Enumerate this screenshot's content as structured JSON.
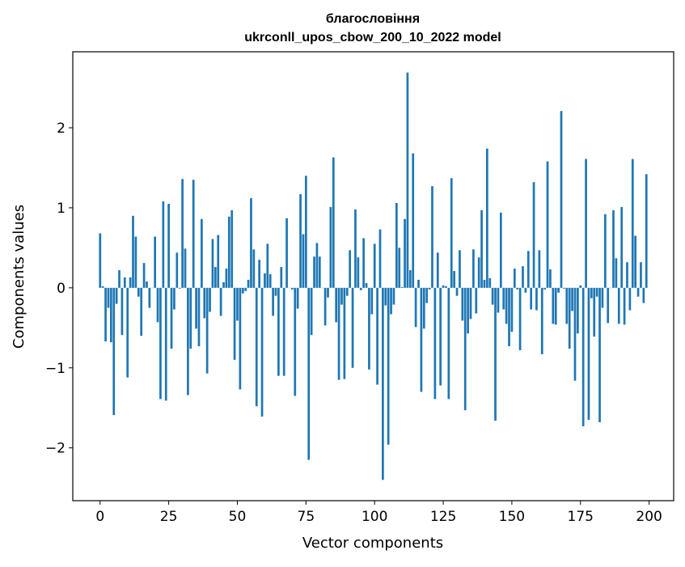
{
  "chart_data": {
    "type": "bar",
    "title_line1": "благословіння",
    "title_line2": "ukrconll_upos_cbow_200_10_2022 model",
    "xlabel": "Vector components",
    "ylabel": "Components values",
    "xlim": [
      -9.95,
      208.95
    ],
    "ylim": [
      -2.66,
      2.95
    ],
    "xticks": [
      0,
      25,
      50,
      75,
      100,
      125,
      150,
      175,
      200
    ],
    "xtick_labels": [
      "0",
      "25",
      "50",
      "75",
      "100",
      "125",
      "150",
      "175",
      "200"
    ],
    "yticks": [
      -2,
      -1,
      0,
      1,
      2
    ],
    "ytick_labels": [
      "−2",
      "−1",
      "0",
      "1",
      "2"
    ],
    "grid": false,
    "bar_color": "#1f77b4",
    "x": [
      0,
      1,
      2,
      3,
      4,
      5,
      6,
      7,
      8,
      9,
      10,
      11,
      12,
      13,
      14,
      15,
      16,
      17,
      18,
      19,
      20,
      21,
      22,
      23,
      24,
      25,
      26,
      27,
      28,
      29,
      30,
      31,
      32,
      33,
      34,
      35,
      36,
      37,
      38,
      39,
      40,
      41,
      42,
      43,
      44,
      45,
      46,
      47,
      48,
      49,
      50,
      51,
      52,
      53,
      54,
      55,
      56,
      57,
      58,
      59,
      60,
      61,
      62,
      63,
      64,
      65,
      66,
      67,
      68,
      69,
      70,
      71,
      72,
      73,
      74,
      75,
      76,
      77,
      78,
      79,
      80,
      81,
      82,
      83,
      84,
      85,
      86,
      87,
      88,
      89,
      90,
      91,
      92,
      93,
      94,
      95,
      96,
      97,
      98,
      99,
      100,
      101,
      102,
      103,
      104,
      105,
      106,
      107,
      108,
      109,
      110,
      111,
      112,
      113,
      114,
      115,
      116,
      117,
      118,
      119,
      120,
      121,
      122,
      123,
      124,
      125,
      126,
      127,
      128,
      129,
      130,
      131,
      132,
      133,
      134,
      135,
      136,
      137,
      138,
      139,
      140,
      141,
      142,
      143,
      144,
      145,
      146,
      147,
      148,
      149,
      150,
      151,
      152,
      153,
      154,
      155,
      156,
      157,
      158,
      159,
      160,
      161,
      162,
      163,
      164,
      165,
      166,
      167,
      168,
      169,
      170,
      171,
      172,
      173,
      174,
      175,
      176,
      177,
      178,
      179,
      180,
      181,
      182,
      183,
      184,
      185,
      186,
      187,
      188,
      189,
      190,
      191,
      192,
      193,
      194,
      195,
      196,
      197,
      198,
      199
    ],
    "values": [
      0.68,
      0.02,
      -0.67,
      -0.25,
      -0.68,
      -1.59,
      -0.2,
      0.22,
      -0.59,
      0.13,
      -1.12,
      0.13,
      0.9,
      0.64,
      -0.11,
      -0.6,
      0.31,
      0.08,
      -0.25,
      0.0,
      0.64,
      -0.43,
      -1.39,
      1.08,
      -1.41,
      1.05,
      -0.76,
      -0.27,
      0.44,
      -0.01,
      1.36,
      0.49,
      -1.34,
      -0.76,
      1.35,
      -0.51,
      -0.73,
      0.86,
      -0.38,
      -1.07,
      -0.3,
      0.61,
      0.26,
      0.66,
      -0.35,
      0.07,
      0.24,
      0.89,
      0.97,
      -0.9,
      -0.41,
      -1.27,
      -0.07,
      -0.04,
      0.1,
      1.12,
      0.48,
      -1.48,
      0.35,
      -1.61,
      0.18,
      0.55,
      0.17,
      -0.35,
      -0.1,
      -1.1,
      0.26,
      -1.1,
      0.87,
      0.0,
      -0.02,
      -1.35,
      -0.26,
      1.17,
      0.67,
      1.4,
      -2.15,
      -0.59,
      0.39,
      0.56,
      0.39,
      0.0,
      -0.47,
      -0.12,
      1.01,
      1.63,
      -0.43,
      -1.15,
      -0.21,
      -1.14,
      -0.1,
      0.47,
      -1.0,
      0.98,
      0.38,
      -0.03,
      0.62,
      0.06,
      -1.02,
      -0.33,
      0.55,
      -1.21,
      0.73,
      -2.4,
      -0.22,
      -1.96,
      -0.33,
      -0.21,
      1.06,
      0.5,
      0.01,
      0.86,
      2.69,
      0.22,
      1.68,
      -0.49,
      0.1,
      -1.3,
      -0.51,
      -0.19,
      -0.02,
      1.27,
      -1.39,
      0.44,
      -1.22,
      0.03,
      0.02,
      -1.39,
      1.37,
      0.21,
      -0.1,
      0.47,
      -0.41,
      -1.53,
      -0.57,
      -0.39,
      0.48,
      -0.32,
      0.38,
      0.97,
      0.1,
      1.74,
      0.12,
      -0.21,
      -1.66,
      -0.31,
      0.94,
      -0.27,
      -0.45,
      -0.73,
      -0.55,
      0.24,
      -0.02,
      -0.78,
      0.27,
      -0.06,
      0.46,
      -0.27,
      1.32,
      -0.28,
      0.47,
      -0.83,
      -0.02,
      1.58,
      0.23,
      -0.45,
      -0.46,
      -0.06,
      2.21,
      -0.01,
      -0.45,
      -0.76,
      -0.29,
      -1.16,
      -0.57,
      0.03,
      -1.73,
      1.61,
      -1.65,
      -0.13,
      -0.61,
      -0.11,
      -1.68,
      -0.25,
      0.92,
      -0.44,
      0.0,
      0.97,
      0.37,
      -0.45,
      1.01,
      -0.46,
      0.32,
      -0.28,
      1.61,
      0.65,
      -0.11,
      0.32,
      -0.19,
      1.42
    ]
  }
}
